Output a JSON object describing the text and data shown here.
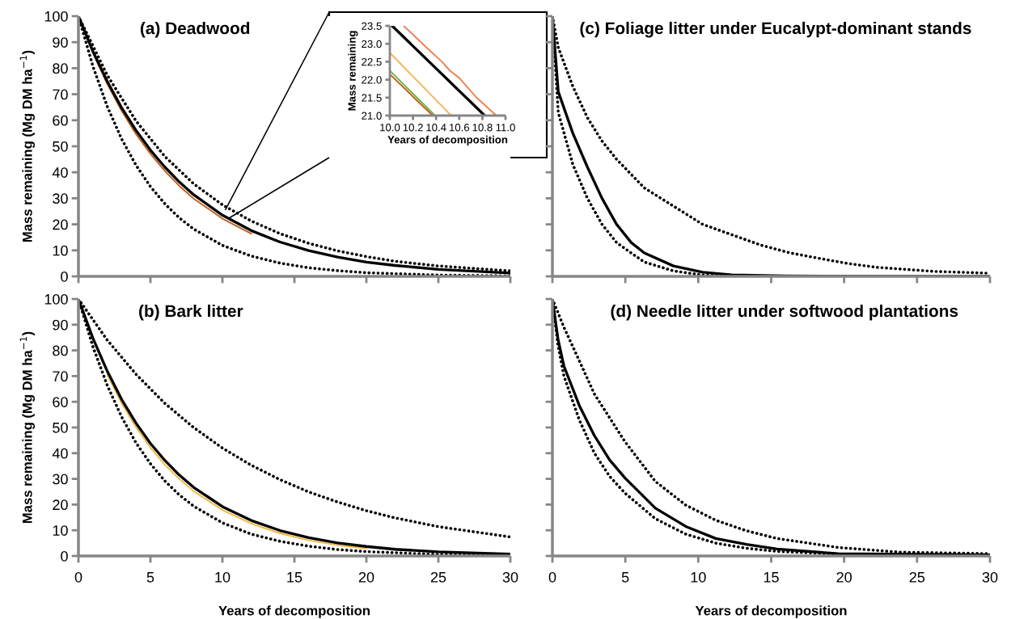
{
  "chart_data": [
    {
      "type": "line",
      "title": "(a) Deadwood",
      "ylabel": "Mass remaining (Mg DM ha$^{−1}$)",
      "xlim": [
        0,
        30
      ],
      "xticks": [
        0,
        5,
        10,
        15,
        20,
        25,
        30
      ],
      "ylim": [
        0,
        100
      ],
      "yticks": [
        0,
        10,
        20,
        30,
        40,
        50,
        60,
        70,
        80,
        90,
        100
      ],
      "tick_labels": "y",
      "series": [
        {
          "color": "#c0601f",
          "line_style": "solid",
          "x": [
            0,
            1,
            2,
            3,
            4,
            5,
            6,
            7,
            8,
            10,
            12
          ],
          "values": [
            100,
            86,
            74,
            63.6,
            54.7,
            47.1,
            40.5,
            34.8,
            29.9,
            22.2,
            16.4
          ]
        },
        {
          "color": "#000000",
          "line_style": "solid",
          "x": [
            0,
            1,
            2,
            3,
            4,
            5,
            6,
            7,
            8,
            10,
            12,
            14,
            16,
            18,
            20,
            22,
            25,
            30
          ],
          "values": [
            100,
            86.5,
            74.9,
            64.8,
            56.1,
            48.5,
            42,
            36.3,
            31.4,
            23.5,
            17.6,
            13.2,
            9.9,
            7.4,
            5.5,
            4.2,
            2.7,
            1.3
          ]
        },
        {
          "color": "#000000",
          "line_style": "dotted",
          "x": [
            0,
            2,
            4,
            6,
            8,
            10,
            12,
            14,
            16,
            18,
            20,
            22,
            25,
            30
          ],
          "values": [
            100,
            77.3,
            59.7,
            46.1,
            35.6,
            27.5,
            21.3,
            16.4,
            12.7,
            9.8,
            7.6,
            5.8,
            4,
            2.1
          ]
        },
        {
          "color": "#000000",
          "line_style": "dotted",
          "x": [
            0,
            1,
            2,
            3,
            4,
            5,
            6,
            7,
            8,
            10,
            12,
            14,
            16,
            18,
            20,
            25,
            30
          ],
          "values": [
            100,
            80.8,
            65.3,
            52.8,
            42.7,
            34.5,
            27.9,
            22.5,
            18.2,
            11.9,
            7.8,
            5.1,
            3.3,
            2.2,
            1.4,
            0.5,
            0.2
          ]
        }
      ]
    },
    {
      "type": "line",
      "xlabel": "Years of decomposition",
      "ylabel": "Mass remaining",
      "xlim": [
        10,
        11
      ],
      "ylim": [
        21,
        23.5
      ],
      "xticks": [
        {
          "value": 10,
          "label": "10.0"
        },
        {
          "value": 10.2,
          "label": "10.2"
        },
        {
          "value": 10.4,
          "label": "10.4"
        },
        {
          "value": 10.6,
          "label": "10.6"
        },
        {
          "value": 10.8,
          "label": "10.8"
        },
        {
          "value": 11,
          "label": "11.0"
        }
      ],
      "yticks": [
        {
          "value": 21,
          "label": "21.0"
        },
        {
          "value": 21.5,
          "label": "21.5"
        },
        {
          "value": 22,
          "label": "22.0"
        },
        {
          "value": 22.5,
          "label": "22.5"
        },
        {
          "value": 23,
          "label": "23.0"
        },
        {
          "value": 23.5,
          "label": "23.5"
        }
      ],
      "series": [
        {
          "color": "#f08050",
          "line_style": "solid",
          "x": [
            10.12,
            10.3,
            10.45,
            10.52,
            10.6,
            10.75,
            10.92
          ],
          "values": [
            23.5,
            22.95,
            22.5,
            22.25,
            22.05,
            21.5,
            21.0
          ]
        },
        {
          "color": "#f5b860",
          "line_style": "solid",
          "x": [
            10.0,
            10.53
          ],
          "values": [
            22.75,
            21.0
          ]
        },
        {
          "color": "#70b040",
          "line_style": "solid",
          "x": [
            10.0,
            10.39
          ],
          "values": [
            22.25,
            21.0
          ]
        },
        {
          "color": "#c0601f",
          "line_style": "solid",
          "x": [
            10.0,
            10.37
          ],
          "values": [
            22.15,
            21.0
          ]
        },
        {
          "color": "#000000",
          "line_style": "solid",
          "x": [
            10.02,
            10.82
          ],
          "values": [
            23.5,
            21.0
          ]
        }
      ]
    },
    {
      "type": "line",
      "title": "(c) Foliage litter under Eucalypt-dominant stands",
      "xlim": [
        0,
        30
      ],
      "xticks": [
        0,
        5,
        10,
        15,
        20,
        25,
        30
      ],
      "ylim": [
        0,
        100
      ],
      "yticks": [
        0,
        10,
        20,
        30,
        40,
        50,
        60,
        70,
        80,
        90,
        100
      ],
      "tick_labels": false,
      "series": [
        {
          "color": "#000000",
          "line_style": "solid",
          "x": [
            0,
            0.4,
            1.4,
            2.4,
            3.4,
            4.4,
            5.4,
            6.3,
            8.3,
            10.3,
            12.3,
            16,
            20,
            25,
            30
          ],
          "values": [
            100,
            71,
            55,
            42,
            30,
            20,
            13,
            9,
            4,
            1.6,
            0.6,
            0.2,
            0.1,
            0,
            0
          ]
        },
        {
          "color": "#000000",
          "line_style": "dotted",
          "x": [
            0,
            0.4,
            1.4,
            2.4,
            3.4,
            4.4,
            6.3,
            8.3,
            10.3,
            12.3,
            14.3,
            16.3,
            18.2,
            20.2,
            22.2,
            24.2,
            26.2,
            30
          ],
          "values": [
            100,
            88,
            73,
            61,
            52,
            45,
            34,
            27,
            20,
            16,
            12,
            9,
            7,
            5,
            3.5,
            2.7,
            1.9,
            1.2
          ]
        },
        {
          "color": "#000000",
          "line_style": "dotted",
          "x": [
            0,
            0.4,
            1.4,
            2.4,
            3.4,
            4.4,
            5.4,
            6.3,
            8.3,
            10.3,
            12.3,
            15,
            20,
            25,
            30
          ],
          "values": [
            100,
            63,
            43,
            30,
            20,
            13,
            9,
            5.5,
            2.1,
            0.5,
            0.1,
            0,
            0,
            0,
            0
          ]
        }
      ]
    },
    {
      "type": "line",
      "title": "(b) Bark litter",
      "xlabel": "Years of decomposition",
      "ylabel": "Mass remaining (Mg DM ha$^{−1}$)",
      "xlim": [
        0,
        30
      ],
      "xticks": [
        0,
        5,
        10,
        15,
        20,
        25,
        30
      ],
      "ylim": [
        0,
        100
      ],
      "yticks": [
        0,
        10,
        20,
        30,
        40,
        50,
        60,
        70,
        80,
        90,
        100
      ],
      "series": [
        {
          "color": "#f0b840",
          "line_style": "solid",
          "x": [
            2,
            3,
            4,
            5,
            6,
            7,
            8,
            10,
            12,
            14,
            16,
            18,
            20
          ],
          "values": [
            70.6,
            59.4,
            50.1,
            42.2,
            35.5,
            30,
            25.2,
            17.9,
            12.6,
            8.8,
            6.1,
            4.2,
            2.9
          ]
        },
        {
          "color": "#000000",
          "line_style": "solid",
          "x": [
            0,
            1,
            2,
            3,
            4,
            5,
            6,
            7,
            8,
            10,
            12,
            14,
            16,
            18,
            20,
            22,
            25,
            30
          ],
          "values": [
            100,
            84.8,
            71.9,
            60.9,
            51.7,
            43.8,
            37.2,
            31.5,
            26.7,
            19.2,
            13.8,
            9.9,
            7.1,
            5.1,
            3.7,
            2.6,
            1.6,
            0.7
          ]
        },
        {
          "color": "#000000",
          "line_style": "dotted",
          "x": [
            0,
            2,
            4,
            6,
            8,
            10,
            12,
            14,
            16,
            18,
            20,
            22,
            25,
            30
          ],
          "values": [
            100,
            84,
            70.7,
            59.4,
            50,
            42,
            35.3,
            29.7,
            24.9,
            21,
            17.6,
            14.8,
            11.4,
            7.4
          ]
        },
        {
          "color": "#000000",
          "line_style": "dotted",
          "x": [
            0,
            1,
            2,
            3,
            4,
            5,
            6,
            7,
            8,
            10,
            12,
            14,
            16,
            18,
            20,
            25,
            30
          ],
          "values": [
            100,
            81.5,
            66.4,
            54.1,
            44,
            35.9,
            29.2,
            23.8,
            19.4,
            12.9,
            8.5,
            5.7,
            3.8,
            2.5,
            1.7,
            0.6,
            0.2
          ]
        }
      ]
    },
    {
      "type": "line",
      "title": "(d) Needle litter under softwood plantations",
      "xlabel": "Years of decomposition",
      "xlim": [
        0,
        30
      ],
      "xticks": [
        0,
        5,
        10,
        15,
        20,
        25,
        30
      ],
      "ylim": [
        0,
        100
      ],
      "yticks": [
        0,
        10,
        20,
        30,
        40,
        50,
        60,
        70,
        80,
        90,
        100
      ],
      "tick_labels": "x",
      "series": [
        {
          "color": "#000000",
          "line_style": "solid",
          "x": [
            0,
            0.38,
            0.79,
            1.84,
            2.88,
            3.92,
            4.97,
            7.06,
            9.14,
            11.2,
            13.3,
            15.4,
            19.6,
            30
          ],
          "values": [
            100,
            84.5,
            73.9,
            58.6,
            46.8,
            37.4,
            30.4,
            18.6,
            11.5,
            6.8,
            4.5,
            2.7,
            0.9,
            0.4
          ]
        },
        {
          "color": "#000000",
          "line_style": "dotted",
          "x": [
            0,
            0.79,
            1.84,
            2.88,
            4.97,
            7.06,
            9.14,
            11.2,
            13.3,
            15.4,
            19.6,
            23.8,
            30
          ],
          "values": [
            100,
            89,
            76,
            63,
            44.5,
            29,
            19.8,
            13.9,
            9.8,
            6.8,
            3.3,
            1.5,
            0.9
          ]
        },
        {
          "color": "#000000",
          "line_style": "dotted",
          "x": [
            0,
            0.38,
            0.79,
            1.84,
            2.88,
            3.92,
            4.97,
            7.06,
            9.14,
            11.2,
            13.3,
            15.4,
            19.6,
            30
          ],
          "values": [
            100,
            82,
            70,
            53,
            40,
            31,
            24.5,
            14.5,
            8.5,
            5,
            3,
            1.8,
            0.7,
            0.2
          ]
        }
      ]
    }
  ]
}
